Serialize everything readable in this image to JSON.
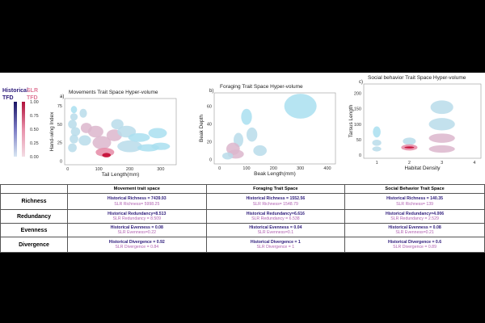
{
  "legend": {
    "series_labels": [
      "Historical",
      "SLR"
    ],
    "metric_labels": [
      "TFD",
      "TFD"
    ],
    "ticks": [
      "1.00",
      "0.75",
      "0.50",
      "0.25",
      "0.00"
    ]
  },
  "colors": {
    "historical": "#2c1a7a",
    "slr": "#e07a98",
    "low": "#9fd6e6",
    "high": "#c2002a"
  },
  "chart_data": [
    {
      "type": "heatmap",
      "panel": "a)",
      "title": "Movements Trait Space Hyper-volume",
      "xlabel": "Tail Length(mm)",
      "ylabel": "Hand-wing Index",
      "xticks": [
        "0",
        "100",
        "200",
        "300"
      ],
      "yticks": [
        "0",
        "25",
        "50",
        "75"
      ],
      "xlim": [
        -10,
        350
      ],
      "ylim": [
        -5,
        85
      ],
      "blobs": [
        {
          "x": 20,
          "y": 70,
          "w": 10,
          "h": 5,
          "v": 0.15
        },
        {
          "x": 20,
          "y": 60,
          "w": 12,
          "h": 5,
          "v": 0.2
        },
        {
          "x": 15,
          "y": 50,
          "w": 14,
          "h": 6,
          "v": 0.25
        },
        {
          "x": 25,
          "y": 40,
          "w": 15,
          "h": 6,
          "v": 0.3
        },
        {
          "x": 20,
          "y": 30,
          "w": 14,
          "h": 6,
          "v": 0.3
        },
        {
          "x": 15,
          "y": 18,
          "w": 14,
          "h": 6,
          "v": 0.25
        },
        {
          "x": 50,
          "y": 65,
          "w": 12,
          "h": 6,
          "v": 0.2
        },
        {
          "x": 60,
          "y": 45,
          "w": 18,
          "h": 7,
          "v": 0.35
        },
        {
          "x": 55,
          "y": 28,
          "w": 20,
          "h": 7,
          "v": 0.3
        },
        {
          "x": 90,
          "y": 40,
          "w": 25,
          "h": 8,
          "v": 0.4
        },
        {
          "x": 110,
          "y": 25,
          "w": 30,
          "h": 9,
          "v": 0.55
        },
        {
          "x": 120,
          "y": 12,
          "w": 30,
          "h": 6,
          "v": 0.7
        },
        {
          "x": 125,
          "y": 8,
          "w": 14,
          "h": 3,
          "v": 1.0
        },
        {
          "x": 150,
          "y": 35,
          "w": 25,
          "h": 8,
          "v": 0.35
        },
        {
          "x": 160,
          "y": 50,
          "w": 20,
          "h": 7,
          "v": 0.3
        },
        {
          "x": 190,
          "y": 40,
          "w": 30,
          "h": 8,
          "v": 0.25
        },
        {
          "x": 200,
          "y": 20,
          "w": 40,
          "h": 8,
          "v": 0.3
        },
        {
          "x": 230,
          "y": 32,
          "w": 35,
          "h": 6,
          "v": 0.15
        },
        {
          "x": 260,
          "y": 18,
          "w": 35,
          "h": 5,
          "v": 0.1
        },
        {
          "x": 290,
          "y": 38,
          "w": 30,
          "h": 7,
          "v": 0.15
        },
        {
          "x": 300,
          "y": 20,
          "w": 30,
          "h": 5,
          "v": 0.1
        }
      ]
    },
    {
      "type": "heatmap",
      "panel": "b)",
      "title": "Foraging Trait Space Hyper-volume",
      "xlabel": "Beak Length(mm)",
      "ylabel": "Beak Depth",
      "xticks": [
        "0",
        "100",
        "200",
        "300",
        "400"
      ],
      "yticks": [
        "0",
        "20",
        "40",
        "60"
      ],
      "xlim": [
        -20,
        430
      ],
      "ylim": [
        -5,
        75
      ],
      "blobs": [
        {
          "x": 300,
          "y": 60,
          "w": 60,
          "h": 14,
          "v": 0.15
        },
        {
          "x": 100,
          "y": 48,
          "w": 20,
          "h": 9,
          "v": 0.15
        },
        {
          "x": 120,
          "y": 28,
          "w": 20,
          "h": 8,
          "v": 0.2
        },
        {
          "x": 70,
          "y": 22,
          "w": 18,
          "h": 8,
          "v": 0.25
        },
        {
          "x": 50,
          "y": 12,
          "w": 25,
          "h": 7,
          "v": 0.4
        },
        {
          "x": 60,
          "y": 6,
          "w": 30,
          "h": 5,
          "v": 0.5
        },
        {
          "x": 150,
          "y": 10,
          "w": 25,
          "h": 6,
          "v": 0.2
        },
        {
          "x": 30,
          "y": 4,
          "w": 20,
          "h": 4,
          "v": 0.3
        }
      ]
    },
    {
      "type": "heatmap",
      "panel": "c)",
      "title": "Social behavior Trait Space Hyper-volume",
      "xlabel": "Habitat Density",
      "ylabel": "Tarsus Length",
      "xticks": [
        "1",
        "2",
        "3",
        "4"
      ],
      "yticks": [
        "0",
        "50",
        "100",
        "150",
        "200"
      ],
      "xlim": [
        0.6,
        4.2
      ],
      "ylim": [
        -10,
        230
      ],
      "blobs": [
        {
          "x": 1,
          "y": 75,
          "w": 0.12,
          "h": 18,
          "v": 0.15
        },
        {
          "x": 1,
          "y": 40,
          "w": 0.14,
          "h": 10,
          "v": 0.2
        },
        {
          "x": 1,
          "y": 20,
          "w": 0.14,
          "h": 8,
          "v": 0.25
        },
        {
          "x": 2,
          "y": 45,
          "w": 0.2,
          "h": 12,
          "v": 0.3
        },
        {
          "x": 2,
          "y": 25,
          "w": 0.25,
          "h": 10,
          "v": 0.6
        },
        {
          "x": 2,
          "y": 25,
          "w": 0.15,
          "h": 3,
          "v": 1.0
        },
        {
          "x": 3,
          "y": 155,
          "w": 0.35,
          "h": 22,
          "v": 0.25
        },
        {
          "x": 3,
          "y": 100,
          "w": 0.4,
          "h": 20,
          "v": 0.3
        },
        {
          "x": 3,
          "y": 55,
          "w": 0.4,
          "h": 15,
          "v": 0.4
        },
        {
          "x": 3,
          "y": 20,
          "w": 0.4,
          "h": 12,
          "v": 0.5
        }
      ]
    }
  ],
  "table": {
    "headers": [
      "",
      "Movement trait space",
      "Foraging Trait Space",
      "Social Behavior Trait Space"
    ],
    "rows": [
      {
        "label": "Richness",
        "cells": [
          {
            "historical": "Historical Richness = 7439.93",
            "slr": "SLR Richness= 5998.25"
          },
          {
            "historical": "Historical Richness = 1552.56",
            "slr": "SLR Richness= 1548.79"
          },
          {
            "historical": "Historical Richness = 140.35",
            "slr": "SLR Richness= 139"
          }
        ]
      },
      {
        "label": "Redundancy",
        "cells": [
          {
            "historical": "Historical Redundancy=8.513",
            "slr": "SLR Redundancy = 8.509"
          },
          {
            "historical": "Historical Redundancy=6.616",
            "slr": "SLR Redundancy = 6.538"
          },
          {
            "historical": "Historical Redundancy=4.006",
            "slr": "SLR Redundancy = 2.529"
          }
        ]
      },
      {
        "label": "Evenness",
        "cells": [
          {
            "historical": "Historical Evenness = 0.08",
            "slr": "SLR Evenness=0.22"
          },
          {
            "historical": "Historical Evenness = 0.04",
            "slr": "SLR Evenness=0.1"
          },
          {
            "historical": "Historical Evenness = 0.08",
            "slr": "SLR Evenness=0.21"
          }
        ]
      },
      {
        "label": "Divergence",
        "cells": [
          {
            "historical": "Historical Divergence = 0.92",
            "slr": "SLR Divergence = 0.84"
          },
          {
            "historical": "Historical Divergence = 1",
            "slr": "SLR Divergence = 1"
          },
          {
            "historical": "Historical Divergence = 0.6",
            "slr": "SLR Divergence = 0.89"
          }
        ]
      }
    ]
  }
}
